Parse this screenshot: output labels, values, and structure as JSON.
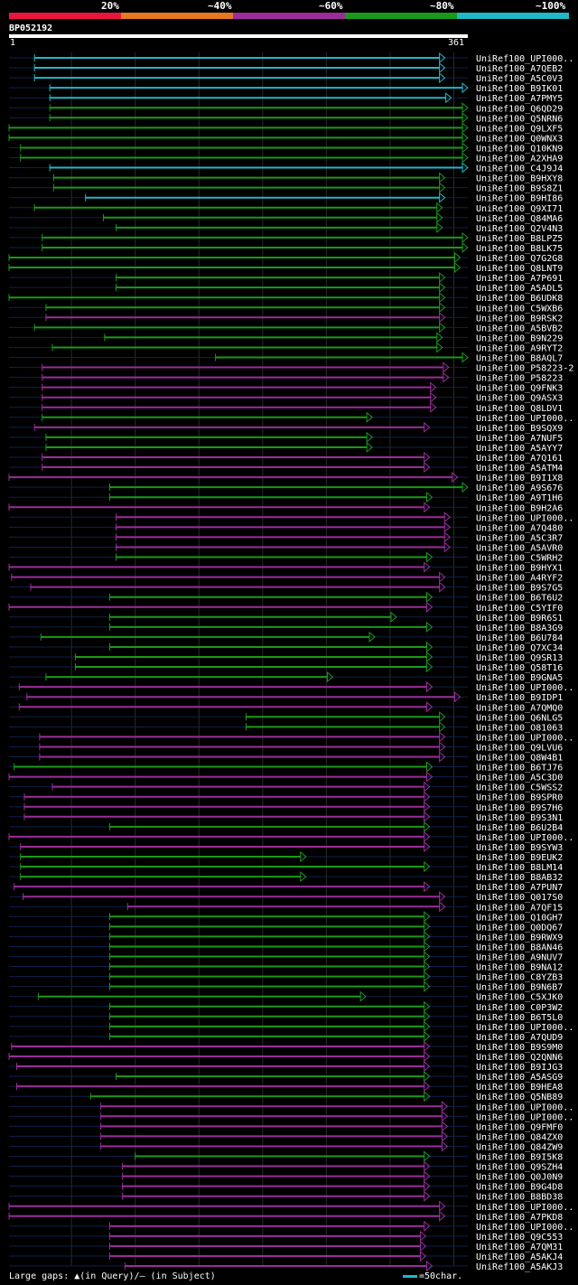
{
  "legend": {
    "labels": [
      "20%",
      "~40%",
      "~60%",
      "~80%",
      "~100%"
    ],
    "colors": [
      "#e8163c",
      "#e87722",
      "#9b2d9b",
      "#1a9a1a",
      "#1fb9c7"
    ]
  },
  "query": {
    "id": "BP052192",
    "start_label": "1",
    "end_label": "361",
    "length": 361
  },
  "footer": {
    "gaps_text": "Large gaps: ▲(in Query)/– (in Subject)",
    "scale_text": "=50char."
  },
  "chart_data": {
    "type": "alignment",
    "title": "BP052192",
    "x_range": [
      1,
      361
    ],
    "hits": [
      {
        "name": "UniRef100_UPI000..",
        "start": 21,
        "end": 343,
        "bin": 4
      },
      {
        "name": "UniRef100_A7QEB2",
        "start": 21,
        "end": 343,
        "bin": 4
      },
      {
        "name": "UniRef100_A5C0V3",
        "start": 21,
        "end": 343,
        "bin": 4
      },
      {
        "name": "UniRef100_B9IK01",
        "start": 33,
        "end": 361,
        "bin": 4
      },
      {
        "name": "UniRef100_A7PMY5",
        "start": 33,
        "end": 348,
        "bin": 4
      },
      {
        "name": "UniRef100_Q6QD29",
        "start": 33,
        "end": 361,
        "bin": 3
      },
      {
        "name": "UniRef100_Q5NRN6",
        "start": 33,
        "end": 361,
        "bin": 3
      },
      {
        "name": "UniRef100_Q9LXF5",
        "start": 1,
        "end": 361,
        "bin": 3
      },
      {
        "name": "UniRef100_Q0WNX3",
        "start": 1,
        "end": 361,
        "bin": 3
      },
      {
        "name": "UniRef100_Q10KN9",
        "start": 10,
        "end": 361,
        "bin": 3
      },
      {
        "name": "UniRef100_A2XHA9",
        "start": 10,
        "end": 361,
        "bin": 3
      },
      {
        "name": "UniRef100_C4J9J4",
        "start": 33,
        "end": 361,
        "bin": 4
      },
      {
        "name": "UniRef100_B9HXY8",
        "start": 36,
        "end": 343,
        "bin": 3
      },
      {
        "name": "UniRef100_B9S8Z1",
        "start": 36,
        "end": 343,
        "bin": 3
      },
      {
        "name": "UniRef100_B9HI86",
        "start": 61,
        "end": 343,
        "bin": 4
      },
      {
        "name": "UniRef100_Q9XI71",
        "start": 21,
        "end": 341,
        "bin": 3
      },
      {
        "name": "UniRef100_Q84MA6",
        "start": 75,
        "end": 341,
        "bin": 3
      },
      {
        "name": "UniRef100_Q2V4N3",
        "start": 85,
        "end": 341,
        "bin": 3
      },
      {
        "name": "UniRef100_B8LPZ5",
        "start": 27,
        "end": 361,
        "bin": 3
      },
      {
        "name": "UniRef100_B8LK75",
        "start": 27,
        "end": 361,
        "bin": 3
      },
      {
        "name": "UniRef100_Q7G2G8",
        "start": 1,
        "end": 355,
        "bin": 3
      },
      {
        "name": "UniRef100_Q8LNT9",
        "start": 1,
        "end": 355,
        "bin": 3
      },
      {
        "name": "UniRef100_A7P691",
        "start": 85,
        "end": 343,
        "bin": 3
      },
      {
        "name": "UniRef100_A5ADL5",
        "start": 85,
        "end": 343,
        "bin": 3
      },
      {
        "name": "UniRef100_B6UDK8",
        "start": 1,
        "end": 343,
        "bin": 3
      },
      {
        "name": "UniRef100_C5WXB6",
        "start": 30,
        "end": 343,
        "bin": 3
      },
      {
        "name": "UniRef100_B9RSK2",
        "start": 30,
        "end": 343,
        "bin": 2
      },
      {
        "name": "UniRef100_A5BVB2",
        "start": 21,
        "end": 343,
        "bin": 3
      },
      {
        "name": "UniRef100_B9N229",
        "start": 76,
        "end": 341,
        "bin": 3
      },
      {
        "name": "UniRef100_A9RYT2",
        "start": 35,
        "end": 341,
        "bin": 3
      },
      {
        "name": "UniRef100_B8AQL7",
        "start": 163,
        "end": 361,
        "bin": 3
      },
      {
        "name": "UniRef100_P58223-2",
        "start": 27,
        "end": 346,
        "bin": 2
      },
      {
        "name": "UniRef100_P58223",
        "start": 27,
        "end": 346,
        "bin": 2
      },
      {
        "name": "UniRef100_Q9FNK3",
        "start": 27,
        "end": 336,
        "bin": 2
      },
      {
        "name": "UniRef100_Q9ASX3",
        "start": 27,
        "end": 336,
        "bin": 2
      },
      {
        "name": "UniRef100_Q8LDV1",
        "start": 27,
        "end": 336,
        "bin": 2
      },
      {
        "name": "UniRef100_UPI000..",
        "start": 27,
        "end": 286,
        "bin": 3
      },
      {
        "name": "UniRef100_B9SQX9",
        "start": 21,
        "end": 331,
        "bin": 2
      },
      {
        "name": "UniRef100_A7NUF5",
        "start": 30,
        "end": 286,
        "bin": 3
      },
      {
        "name": "UniRef100_A5AYY7",
        "start": 30,
        "end": 286,
        "bin": 3
      },
      {
        "name": "UniRef100_A7Q161",
        "start": 27,
        "end": 331,
        "bin": 2
      },
      {
        "name": "UniRef100_A5ATM4",
        "start": 27,
        "end": 331,
        "bin": 2
      },
      {
        "name": "UniRef100_B9I1X8",
        "start": 1,
        "end": 353,
        "bin": 2
      },
      {
        "name": "UniRef100_A9S676",
        "start": 80,
        "end": 361,
        "bin": 3
      },
      {
        "name": "UniRef100_A9T1H6",
        "start": 80,
        "end": 333,
        "bin": 3
      },
      {
        "name": "UniRef100_B9H2A6",
        "start": 1,
        "end": 331,
        "bin": 2
      },
      {
        "name": "UniRef100_UPI000..",
        "start": 85,
        "end": 347,
        "bin": 2
      },
      {
        "name": "UniRef100_A7Q480",
        "start": 85,
        "end": 347,
        "bin": 2
      },
      {
        "name": "UniRef100_A5C3R7",
        "start": 85,
        "end": 347,
        "bin": 2
      },
      {
        "name": "UniRef100_A5AVR0",
        "start": 85,
        "end": 347,
        "bin": 2
      },
      {
        "name": "UniRef100_C5WRH2",
        "start": 85,
        "end": 333,
        "bin": 3
      },
      {
        "name": "UniRef100_B9HYX1",
        "start": 1,
        "end": 331,
        "bin": 2
      },
      {
        "name": "UniRef100_A4RYF2",
        "start": 3,
        "end": 343,
        "bin": 2
      },
      {
        "name": "UniRef100_B9S7G5",
        "start": 18,
        "end": 343,
        "bin": 2
      },
      {
        "name": "UniRef100_B6T6U2",
        "start": 80,
        "end": 333,
        "bin": 3
      },
      {
        "name": "UniRef100_C5YIF0",
        "start": 1,
        "end": 333,
        "bin": 2
      },
      {
        "name": "UniRef100_B9R6S1",
        "start": 80,
        "end": 305,
        "bin": 3
      },
      {
        "name": "UniRef100_B8A3G9",
        "start": 80,
        "end": 333,
        "bin": 3
      },
      {
        "name": "UniRef100_B6U784",
        "start": 26,
        "end": 288,
        "bin": 3
      },
      {
        "name": "UniRef100_Q7XC34",
        "start": 80,
        "end": 333,
        "bin": 3
      },
      {
        "name": "UniRef100_Q9SR13",
        "start": 53,
        "end": 333,
        "bin": 3
      },
      {
        "name": "UniRef100_Q58T16",
        "start": 53,
        "end": 333,
        "bin": 3
      },
      {
        "name": "UniRef100_B9GNA5",
        "start": 30,
        "end": 255,
        "bin": 3
      },
      {
        "name": "UniRef100_UPI000..",
        "start": 9,
        "end": 333,
        "bin": 2
      },
      {
        "name": "UniRef100_B9IDP1",
        "start": 15,
        "end": 355,
        "bin": 2
      },
      {
        "name": "UniRef100_A7QMQ0",
        "start": 9,
        "end": 333,
        "bin": 2
      },
      {
        "name": "UniRef100_Q6NLG5",
        "start": 187,
        "end": 343,
        "bin": 3
      },
      {
        "name": "UniRef100_O81063",
        "start": 187,
        "end": 343,
        "bin": 3
      },
      {
        "name": "UniRef100_UPI000..",
        "start": 25,
        "end": 343,
        "bin": 2
      },
      {
        "name": "UniRef100_Q9LVU6",
        "start": 25,
        "end": 343,
        "bin": 2
      },
      {
        "name": "UniRef100_Q8W4B1",
        "start": 25,
        "end": 343,
        "bin": 2
      },
      {
        "name": "UniRef100_B6TJ76",
        "start": 5,
        "end": 333,
        "bin": 3
      },
      {
        "name": "UniRef100_A5C3D0",
        "start": 1,
        "end": 333,
        "bin": 2
      },
      {
        "name": "UniRef100_C5WSS2",
        "start": 35,
        "end": 331,
        "bin": 2
      },
      {
        "name": "UniRef100_B9SPR0",
        "start": 13,
        "end": 331,
        "bin": 2
      },
      {
        "name": "UniRef100_B9S7H6",
        "start": 13,
        "end": 331,
        "bin": 2
      },
      {
        "name": "UniRef100_B9S3N1",
        "start": 13,
        "end": 331,
        "bin": 2
      },
      {
        "name": "UniRef100_B6U2B4",
        "start": 80,
        "end": 331,
        "bin": 3
      },
      {
        "name": "UniRef100_UPI000..",
        "start": 1,
        "end": 331,
        "bin": 2
      },
      {
        "name": "UniRef100_B9SYW3",
        "start": 10,
        "end": 331,
        "bin": 2
      },
      {
        "name": "UniRef100_B9EUK2",
        "start": 10,
        "end": 234,
        "bin": 3
      },
      {
        "name": "UniRef100_B8LM14",
        "start": 10,
        "end": 331,
        "bin": 3
      },
      {
        "name": "UniRef100_B8AB32",
        "start": 10,
        "end": 234,
        "bin": 3
      },
      {
        "name": "UniRef100_A7PUN7",
        "start": 5,
        "end": 331,
        "bin": 2
      },
      {
        "name": "UniRef100_Q017S0",
        "start": 12,
        "end": 343,
        "bin": 2
      },
      {
        "name": "UniRef100_A7QF15",
        "start": 94,
        "end": 343,
        "bin": 2
      },
      {
        "name": "UniRef100_Q10GH7",
        "start": 80,
        "end": 331,
        "bin": 3
      },
      {
        "name": "UniRef100_Q0DQ67",
        "start": 80,
        "end": 331,
        "bin": 3
      },
      {
        "name": "UniRef100_B9RWX9",
        "start": 80,
        "end": 331,
        "bin": 3
      },
      {
        "name": "UniRef100_B8AN46",
        "start": 80,
        "end": 331,
        "bin": 3
      },
      {
        "name": "UniRef100_A9NUV7",
        "start": 80,
        "end": 331,
        "bin": 3
      },
      {
        "name": "UniRef100_B9NA12",
        "start": 80,
        "end": 331,
        "bin": 3
      },
      {
        "name": "UniRef100_C8YZB3",
        "start": 80,
        "end": 331,
        "bin": 3
      },
      {
        "name": "UniRef100_B9N6B7",
        "start": 80,
        "end": 331,
        "bin": 3
      },
      {
        "name": "UniRef100_C5XJK0",
        "start": 24,
        "end": 281,
        "bin": 3
      },
      {
        "name": "UniRef100_C0P3W2",
        "start": 80,
        "end": 331,
        "bin": 3
      },
      {
        "name": "UniRef100_B6T5L0",
        "start": 80,
        "end": 331,
        "bin": 3
      },
      {
        "name": "UniRef100_UPI000..",
        "start": 80,
        "end": 331,
        "bin": 3
      },
      {
        "name": "UniRef100_A7QUD9",
        "start": 80,
        "end": 331,
        "bin": 3
      },
      {
        "name": "UniRef100_B9S9M0",
        "start": 3,
        "end": 331,
        "bin": 2
      },
      {
        "name": "UniRef100_Q2QNN6",
        "start": 1,
        "end": 331,
        "bin": 2
      },
      {
        "name": "UniRef100_B9IJG3",
        "start": 7,
        "end": 331,
        "bin": 2
      },
      {
        "name": "UniRef100_A5ASG9",
        "start": 85,
        "end": 331,
        "bin": 3
      },
      {
        "name": "UniRef100_B9HEA8",
        "start": 7,
        "end": 331,
        "bin": 2
      },
      {
        "name": "UniRef100_Q5NB89",
        "start": 65,
        "end": 331,
        "bin": 3
      },
      {
        "name": "UniRef100_UPI000..",
        "start": 73,
        "end": 345,
        "bin": 2
      },
      {
        "name": "UniRef100_UPI000..",
        "start": 73,
        "end": 345,
        "bin": 2
      },
      {
        "name": "UniRef100_Q9FMF0",
        "start": 73,
        "end": 345,
        "bin": 2
      },
      {
        "name": "UniRef100_Q84ZX0",
        "start": 73,
        "end": 345,
        "bin": 2
      },
      {
        "name": "UniRef100_Q84ZW9",
        "start": 73,
        "end": 345,
        "bin": 2
      },
      {
        "name": "UniRef100_B9I5K8",
        "start": 100,
        "end": 331,
        "bin": 3
      },
      {
        "name": "UniRef100_Q9SZH4",
        "start": 90,
        "end": 331,
        "bin": 2
      },
      {
        "name": "UniRef100_Q0J0N9",
        "start": 90,
        "end": 331,
        "bin": 2
      },
      {
        "name": "UniRef100_B9G4D8",
        "start": 90,
        "end": 331,
        "bin": 2
      },
      {
        "name": "UniRef100_B8BD38",
        "start": 90,
        "end": 331,
        "bin": 2
      },
      {
        "name": "UniRef100_UPI000..",
        "start": 1,
        "end": 343,
        "bin": 2
      },
      {
        "name": "UniRef100_A7PKD8",
        "start": 1,
        "end": 343,
        "bin": 2
      },
      {
        "name": "UniRef100_UPI000..",
        "start": 80,
        "end": 331,
        "bin": 2
      },
      {
        "name": "UniRef100_Q9C553",
        "start": 80,
        "end": 328,
        "bin": 2
      },
      {
        "name": "UniRef100_A7QM31",
        "start": 80,
        "end": 328,
        "bin": 2
      },
      {
        "name": "UniRef100_A5AKJ4",
        "start": 80,
        "end": 328,
        "bin": 2
      },
      {
        "name": "UniRef100_A5AKJ3",
        "start": 92,
        "end": 333,
        "bin": 2
      }
    ]
  }
}
